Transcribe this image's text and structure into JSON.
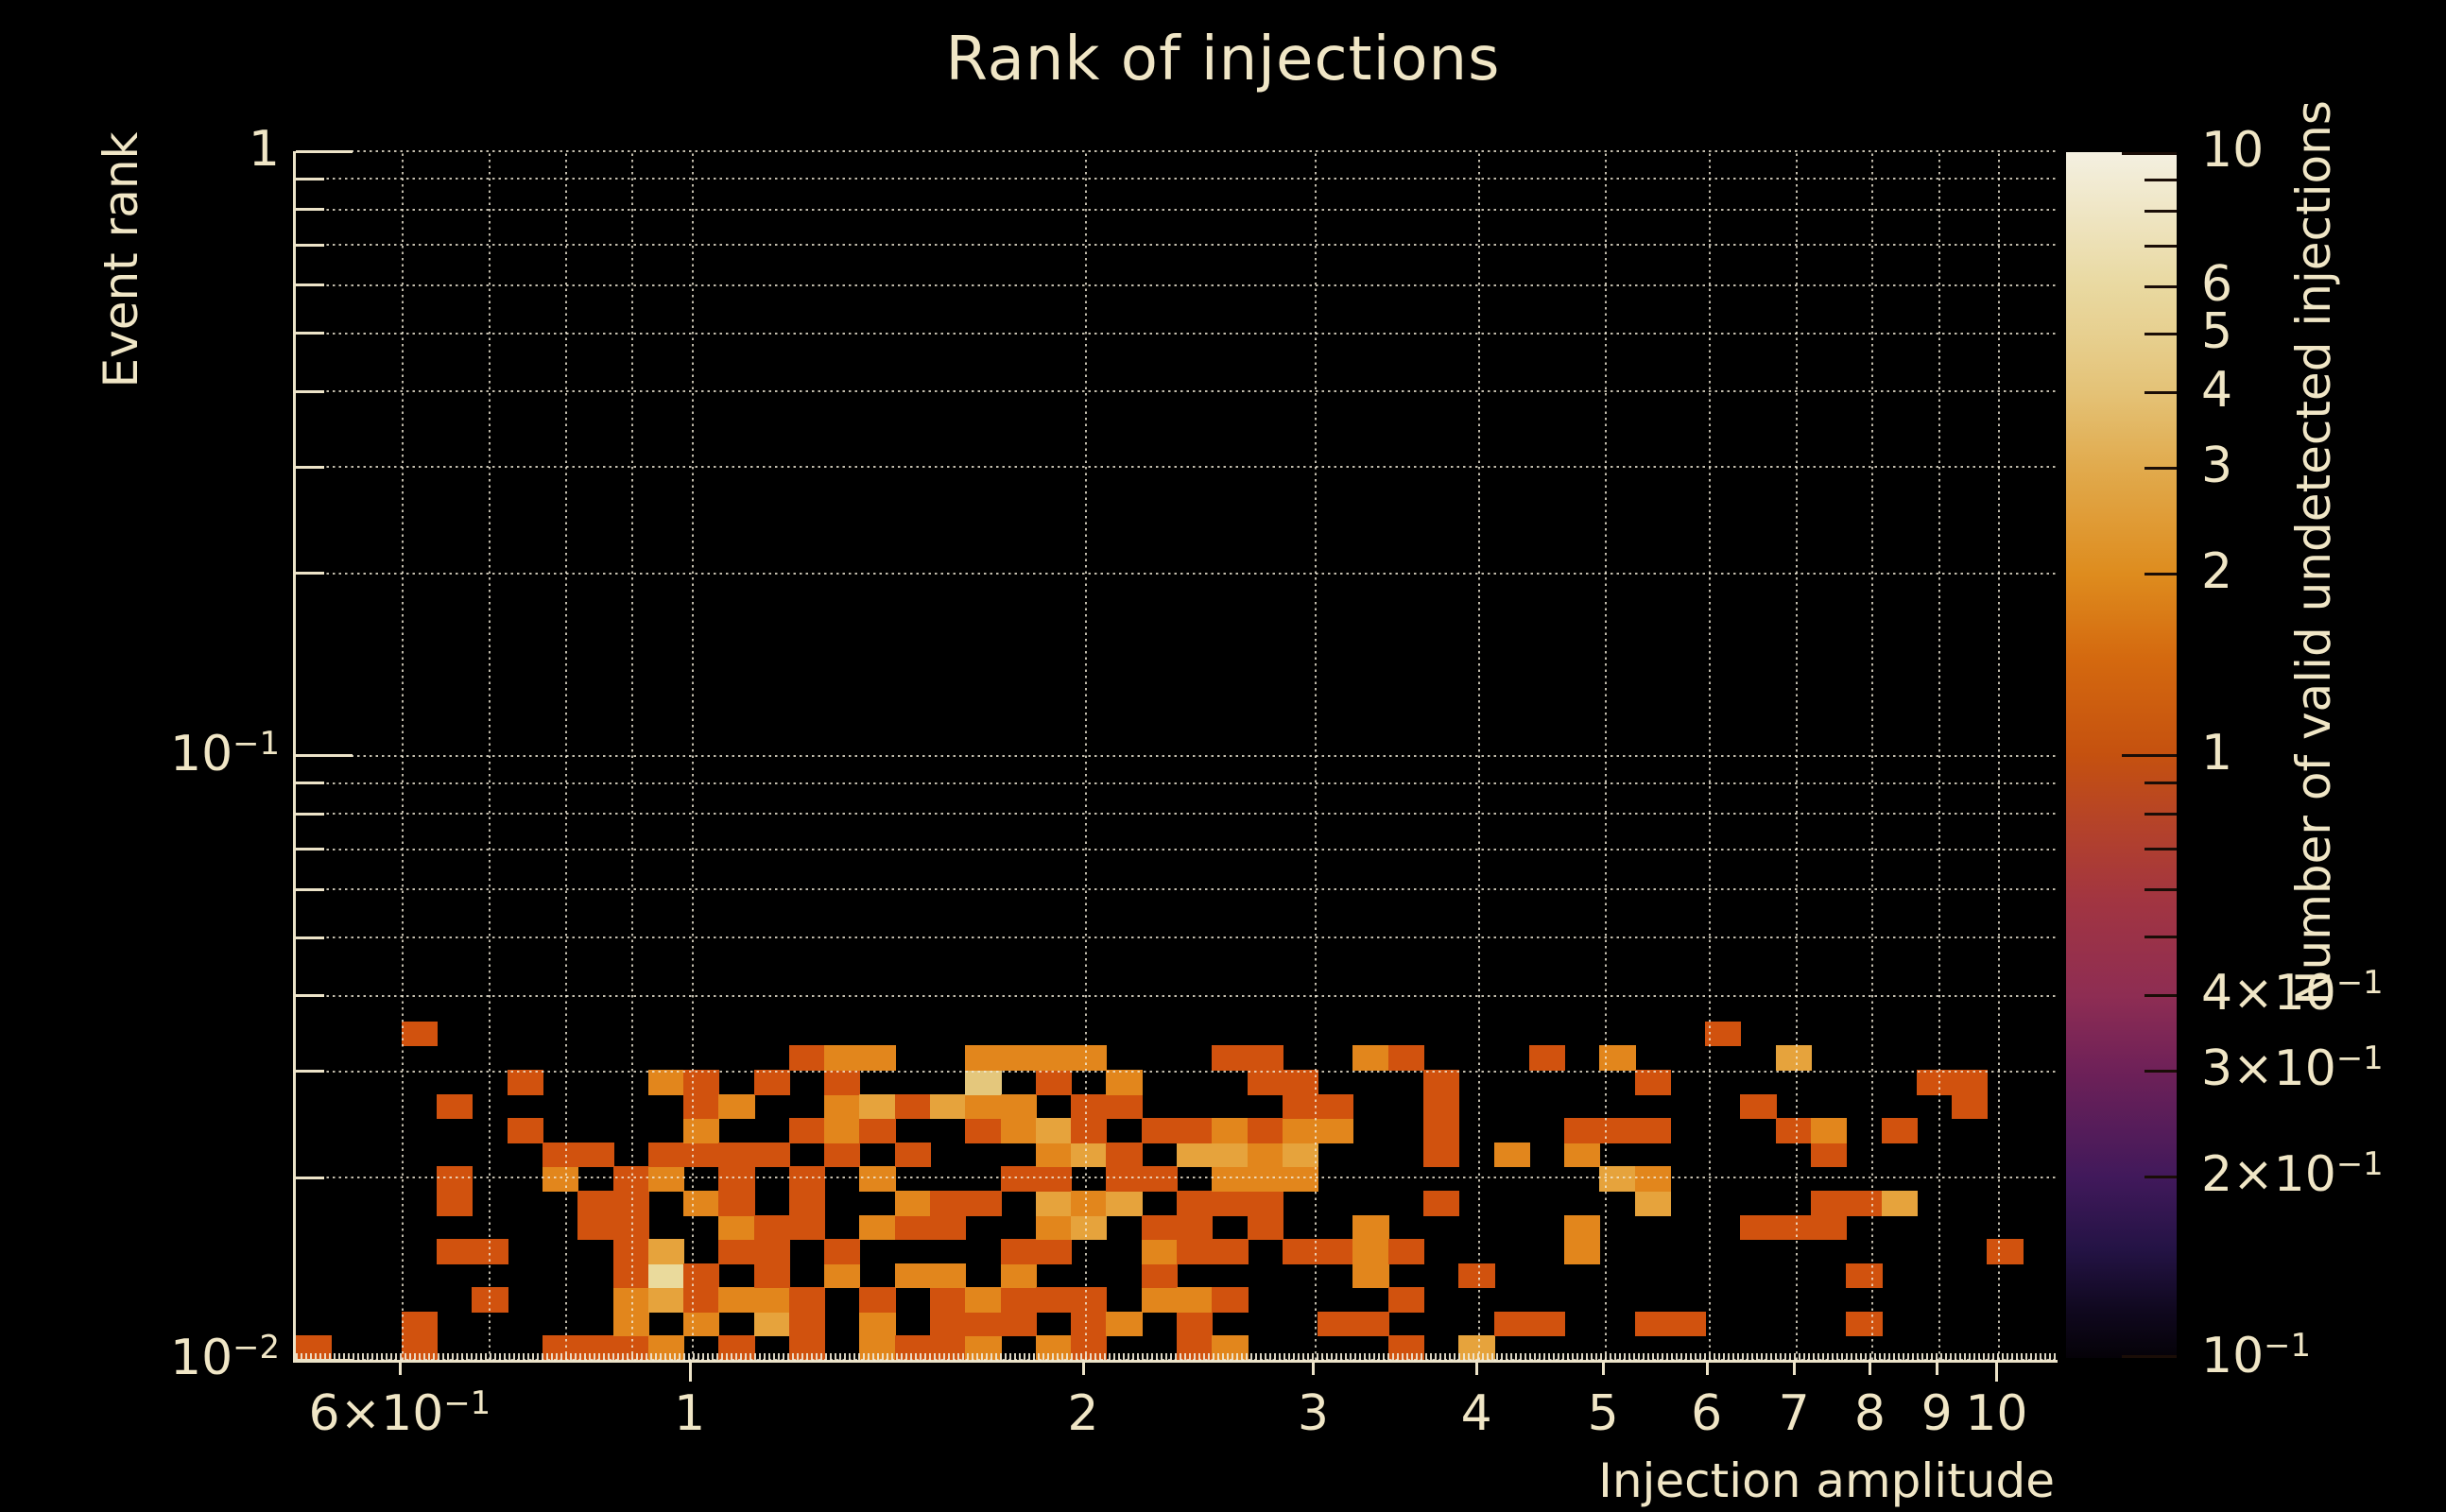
{
  "title": "Rank of injections",
  "colors": {
    "background": "#000000",
    "text": "#f0e6c6",
    "axis": "#ece3c8",
    "grid": "#f2ebd7"
  },
  "chart_data": {
    "type": "heatmap",
    "title": "Rank of injections",
    "xlabel": "Injection amplitude",
    "ylabel": "Event rank",
    "colorbar_label": "Number of valid undetected injections",
    "x_scale": "log",
    "y_scale": "log",
    "color_scale": "log",
    "xlim": [
      0.4972,
      11.08
    ],
    "ylim": [
      0.01,
      1
    ],
    "clim": [
      0.1,
      10
    ],
    "grid": true,
    "legend_position": "right-colorbar",
    "n_xbins": 50,
    "ybin_log_step": 0.04,
    "x_gridlines": [
      0.6,
      0.7,
      0.8,
      0.9,
      1,
      2,
      3,
      4,
      5,
      6,
      7,
      8,
      9,
      10
    ],
    "y_gridlines": [
      1,
      0.9,
      0.8,
      0.7,
      0.6,
      0.5,
      0.4,
      0.3,
      0.2,
      0.1,
      0.09,
      0.08,
      0.07,
      0.06,
      0.05,
      0.04,
      0.03,
      0.02,
      0.01
    ],
    "y_major": [
      1,
      0.1,
      0.01
    ],
    "x_ticks": [
      {
        "v": 0.6,
        "t": "6×10",
        "s": "−1",
        "major": false
      },
      {
        "v": 1,
        "t": "1",
        "major": true
      },
      {
        "v": 2,
        "t": "2",
        "major": false
      },
      {
        "v": 3,
        "t": "3",
        "major": false
      },
      {
        "v": 4,
        "t": "4",
        "major": false
      },
      {
        "v": 5,
        "t": "5",
        "major": false
      },
      {
        "v": 6,
        "t": "6",
        "major": false
      },
      {
        "v": 7,
        "t": "7",
        "major": false
      },
      {
        "v": 8,
        "t": "8",
        "major": false
      },
      {
        "v": 9,
        "t": "9",
        "major": false
      },
      {
        "v": 10,
        "t": "10",
        "major": true
      }
    ],
    "y_ticks": [
      {
        "v": 1,
        "t": "1",
        "major": true
      },
      {
        "v": 0.1,
        "t": "10",
        "s": "−1",
        "major": true
      },
      {
        "v": 0.01,
        "t": "10",
        "s": "−2",
        "major": true
      }
    ],
    "colorbar_ticks": [
      {
        "v": 10,
        "t": "10",
        "major": true
      },
      {
        "v": 6,
        "t": "6",
        "major": false
      },
      {
        "v": 5,
        "t": "5",
        "major": false
      },
      {
        "v": 4,
        "t": "4",
        "major": false
      },
      {
        "v": 3,
        "t": "3",
        "major": false
      },
      {
        "v": 2,
        "t": "2",
        "major": false
      },
      {
        "v": 1,
        "t": "1",
        "major": true
      },
      {
        "v": 0.4,
        "t": "4×10",
        "s": "−1",
        "major": false
      },
      {
        "v": 0.3,
        "t": "3×10",
        "s": "−1",
        "major": false
      },
      {
        "v": 0.2,
        "t": "2×10",
        "s": "−1",
        "major": false
      },
      {
        "v": 0.1,
        "t": "10",
        "s": "−1",
        "major": true
      }
    ],
    "colorbar_minor_ticks": [
      9,
      8,
      7,
      0.9,
      0.8,
      0.7,
      0.6,
      0.5
    ],
    "colorbar_gradient": [
      [
        0.0,
        "#f4f0e1"
      ],
      [
        0.11,
        "#e9d9a1"
      ],
      [
        0.15,
        "#e7d090"
      ],
      [
        0.2,
        "#e4c276"
      ],
      [
        0.26,
        "#e1ab4e"
      ],
      [
        0.35,
        "#de8c1e"
      ],
      [
        0.42,
        "#d4690f"
      ],
      [
        0.5,
        "#c5510f"
      ],
      [
        0.56,
        "#b4422a"
      ],
      [
        0.62,
        "#a23541"
      ],
      [
        0.7,
        "#8e2d53"
      ],
      [
        0.76,
        "#6f2158"
      ],
      [
        0.85,
        "#41195b"
      ],
      [
        0.91,
        "#241345"
      ],
      [
        0.96,
        "#10081f"
      ],
      [
        1.0,
        "#050208"
      ]
    ],
    "value_colors": {
      "1": "#d1520e",
      "2": "#e2861c",
      "3": "#e6a33c",
      "4": "#e4c77c",
      "6": "#eada9c"
    },
    "cells": [
      [
        0,
        0,
        1
      ],
      [
        3,
        0,
        1
      ],
      [
        3,
        1,
        1
      ],
      [
        3,
        13,
        1
      ],
      [
        4,
        4,
        1
      ],
      [
        4,
        6,
        1
      ],
      [
        4,
        7,
        1
      ],
      [
        4,
        10,
        1
      ],
      [
        5,
        2,
        1
      ],
      [
        5,
        4,
        1
      ],
      [
        6,
        9,
        1
      ],
      [
        6,
        11,
        1
      ],
      [
        7,
        0,
        1
      ],
      [
        7,
        7,
        2
      ],
      [
        7,
        8,
        1
      ],
      [
        8,
        0,
        1
      ],
      [
        8,
        5,
        1
      ],
      [
        8,
        6,
        1
      ],
      [
        8,
        8,
        1
      ],
      [
        9,
        0,
        1
      ],
      [
        9,
        1,
        2
      ],
      [
        9,
        2,
        2
      ],
      [
        9,
        3,
        1
      ],
      [
        9,
        4,
        1
      ],
      [
        9,
        5,
        1
      ],
      [
        9,
        6,
        1
      ],
      [
        9,
        7,
        1
      ],
      [
        10,
        0,
        2
      ],
      [
        10,
        2,
        3
      ],
      [
        10,
        3,
        6
      ],
      [
        10,
        4,
        3
      ],
      [
        10,
        7,
        2
      ],
      [
        10,
        8,
        1
      ],
      [
        10,
        11,
        2
      ],
      [
        11,
        1,
        2
      ],
      [
        11,
        2,
        1
      ],
      [
        11,
        3,
        1
      ],
      [
        11,
        6,
        2
      ],
      [
        11,
        8,
        1
      ],
      [
        11,
        9,
        2
      ],
      [
        11,
        10,
        1
      ],
      [
        11,
        11,
        1
      ],
      [
        12,
        0,
        1
      ],
      [
        12,
        2,
        2
      ],
      [
        12,
        4,
        1
      ],
      [
        12,
        5,
        2
      ],
      [
        12,
        6,
        1
      ],
      [
        12,
        7,
        1
      ],
      [
        12,
        8,
        1
      ],
      [
        12,
        10,
        2
      ],
      [
        13,
        1,
        3
      ],
      [
        13,
        2,
        2
      ],
      [
        13,
        3,
        1
      ],
      [
        13,
        4,
        1
      ],
      [
        13,
        5,
        1
      ],
      [
        13,
        8,
        1
      ],
      [
        13,
        11,
        1
      ],
      [
        14,
        0,
        1
      ],
      [
        14,
        1,
        1
      ],
      [
        14,
        2,
        1
      ],
      [
        14,
        5,
        1
      ],
      [
        14,
        6,
        1
      ],
      [
        14,
        7,
        1
      ],
      [
        14,
        9,
        1
      ],
      [
        14,
        12,
        1
      ],
      [
        15,
        3,
        2
      ],
      [
        15,
        4,
        1
      ],
      [
        15,
        8,
        1
      ],
      [
        15,
        9,
        2
      ],
      [
        15,
        10,
        2
      ],
      [
        15,
        11,
        1
      ],
      [
        15,
        12,
        2
      ],
      [
        16,
        0,
        2
      ],
      [
        16,
        1,
        2
      ],
      [
        16,
        2,
        1
      ],
      [
        16,
        5,
        2
      ],
      [
        16,
        7,
        2
      ],
      [
        16,
        9,
        1
      ],
      [
        16,
        10,
        3
      ],
      [
        16,
        12,
        2
      ],
      [
        17,
        0,
        1
      ],
      [
        17,
        3,
        2
      ],
      [
        17,
        5,
        1
      ],
      [
        17,
        6,
        2
      ],
      [
        17,
        8,
        1
      ],
      [
        17,
        10,
        1
      ],
      [
        18,
        0,
        1
      ],
      [
        18,
        1,
        1
      ],
      [
        18,
        2,
        1
      ],
      [
        18,
        3,
        2
      ],
      [
        18,
        5,
        1
      ],
      [
        18,
        6,
        1
      ],
      [
        18,
        10,
        3
      ],
      [
        19,
        0,
        2
      ],
      [
        19,
        1,
        1
      ],
      [
        19,
        2,
        2
      ],
      [
        19,
        6,
        1
      ],
      [
        19,
        9,
        1
      ],
      [
        19,
        10,
        2
      ],
      [
        19,
        11,
        4
      ],
      [
        19,
        12,
        2
      ],
      [
        20,
        1,
        1
      ],
      [
        20,
        2,
        1
      ],
      [
        20,
        3,
        2
      ],
      [
        20,
        4,
        1
      ],
      [
        20,
        7,
        1
      ],
      [
        20,
        9,
        2
      ],
      [
        20,
        10,
        2
      ],
      [
        20,
        12,
        2
      ],
      [
        21,
        0,
        2
      ],
      [
        21,
        2,
        1
      ],
      [
        21,
        4,
        1
      ],
      [
        21,
        5,
        2
      ],
      [
        21,
        6,
        3
      ],
      [
        21,
        7,
        1
      ],
      [
        21,
        8,
        2
      ],
      [
        21,
        9,
        3
      ],
      [
        21,
        11,
        1
      ],
      [
        21,
        12,
        2
      ],
      [
        22,
        0,
        1
      ],
      [
        22,
        1,
        1
      ],
      [
        22,
        2,
        1
      ],
      [
        22,
        5,
        3
      ],
      [
        22,
        6,
        2
      ],
      [
        22,
        8,
        3
      ],
      [
        22,
        9,
        1
      ],
      [
        22,
        10,
        1
      ],
      [
        22,
        12,
        2
      ],
      [
        23,
        1,
        2
      ],
      [
        23,
        6,
        3
      ],
      [
        23,
        7,
        1
      ],
      [
        23,
        8,
        1
      ],
      [
        23,
        10,
        1
      ],
      [
        23,
        11,
        2
      ],
      [
        24,
        2,
        2
      ],
      [
        24,
        3,
        1
      ],
      [
        24,
        4,
        2
      ],
      [
        24,
        5,
        1
      ],
      [
        24,
        7,
        1
      ],
      [
        24,
        9,
        1
      ],
      [
        25,
        0,
        1
      ],
      [
        25,
        1,
        1
      ],
      [
        25,
        2,
        2
      ],
      [
        25,
        4,
        1
      ],
      [
        25,
        5,
        1
      ],
      [
        25,
        6,
        1
      ],
      [
        25,
        8,
        3
      ],
      [
        25,
        9,
        1
      ],
      [
        26,
        0,
        2
      ],
      [
        26,
        2,
        1
      ],
      [
        26,
        4,
        1
      ],
      [
        26,
        6,
        1
      ],
      [
        26,
        7,
        2
      ],
      [
        26,
        8,
        3
      ],
      [
        26,
        9,
        2
      ],
      [
        26,
        12,
        1
      ],
      [
        27,
        5,
        1
      ],
      [
        27,
        6,
        1
      ],
      [
        27,
        7,
        2
      ],
      [
        27,
        8,
        2
      ],
      [
        27,
        9,
        1
      ],
      [
        27,
        11,
        1
      ],
      [
        27,
        12,
        1
      ],
      [
        28,
        4,
        1
      ],
      [
        28,
        7,
        2
      ],
      [
        28,
        8,
        3
      ],
      [
        28,
        9,
        2
      ],
      [
        28,
        10,
        1
      ],
      [
        28,
        11,
        1
      ],
      [
        29,
        1,
        1
      ],
      [
        29,
        4,
        1
      ],
      [
        29,
        9,
        2
      ],
      [
        29,
        10,
        1
      ],
      [
        30,
        1,
        1
      ],
      [
        30,
        3,
        2
      ],
      [
        30,
        4,
        2
      ],
      [
        30,
        5,
        2
      ],
      [
        30,
        12,
        2
      ],
      [
        31,
        0,
        1
      ],
      [
        31,
        2,
        1
      ],
      [
        31,
        4,
        1
      ],
      [
        31,
        12,
        1
      ],
      [
        32,
        6,
        1
      ],
      [
        32,
        8,
        1
      ],
      [
        32,
        9,
        1
      ],
      [
        32,
        10,
        1
      ],
      [
        32,
        11,
        1
      ],
      [
        33,
        0,
        3
      ],
      [
        33,
        3,
        1
      ],
      [
        34,
        1,
        1
      ],
      [
        34,
        8,
        2
      ],
      [
        35,
        1,
        1
      ],
      [
        35,
        12,
        1
      ],
      [
        36,
        4,
        2
      ],
      [
        36,
        5,
        2
      ],
      [
        36,
        8,
        2
      ],
      [
        36,
        9,
        1
      ],
      [
        37,
        7,
        3
      ],
      [
        37,
        9,
        1
      ],
      [
        37,
        12,
        2
      ],
      [
        38,
        1,
        1
      ],
      [
        38,
        6,
        3
      ],
      [
        38,
        7,
        2
      ],
      [
        38,
        9,
        1
      ],
      [
        38,
        11,
        1
      ],
      [
        39,
        1,
        1
      ],
      [
        40,
        13,
        1
      ],
      [
        41,
        5,
        1
      ],
      [
        41,
        10,
        1
      ],
      [
        42,
        5,
        1
      ],
      [
        42,
        9,
        1
      ],
      [
        42,
        12,
        3
      ],
      [
        43,
        5,
        1
      ],
      [
        43,
        6,
        1
      ],
      [
        43,
        8,
        1
      ],
      [
        43,
        9,
        2
      ],
      [
        44,
        1,
        1
      ],
      [
        44,
        3,
        1
      ],
      [
        44,
        6,
        1
      ],
      [
        45,
        6,
        3
      ],
      [
        45,
        9,
        1
      ],
      [
        46,
        11,
        1
      ],
      [
        47,
        10,
        1
      ],
      [
        47,
        11,
        1
      ],
      [
        48,
        4,
        1
      ]
    ]
  }
}
